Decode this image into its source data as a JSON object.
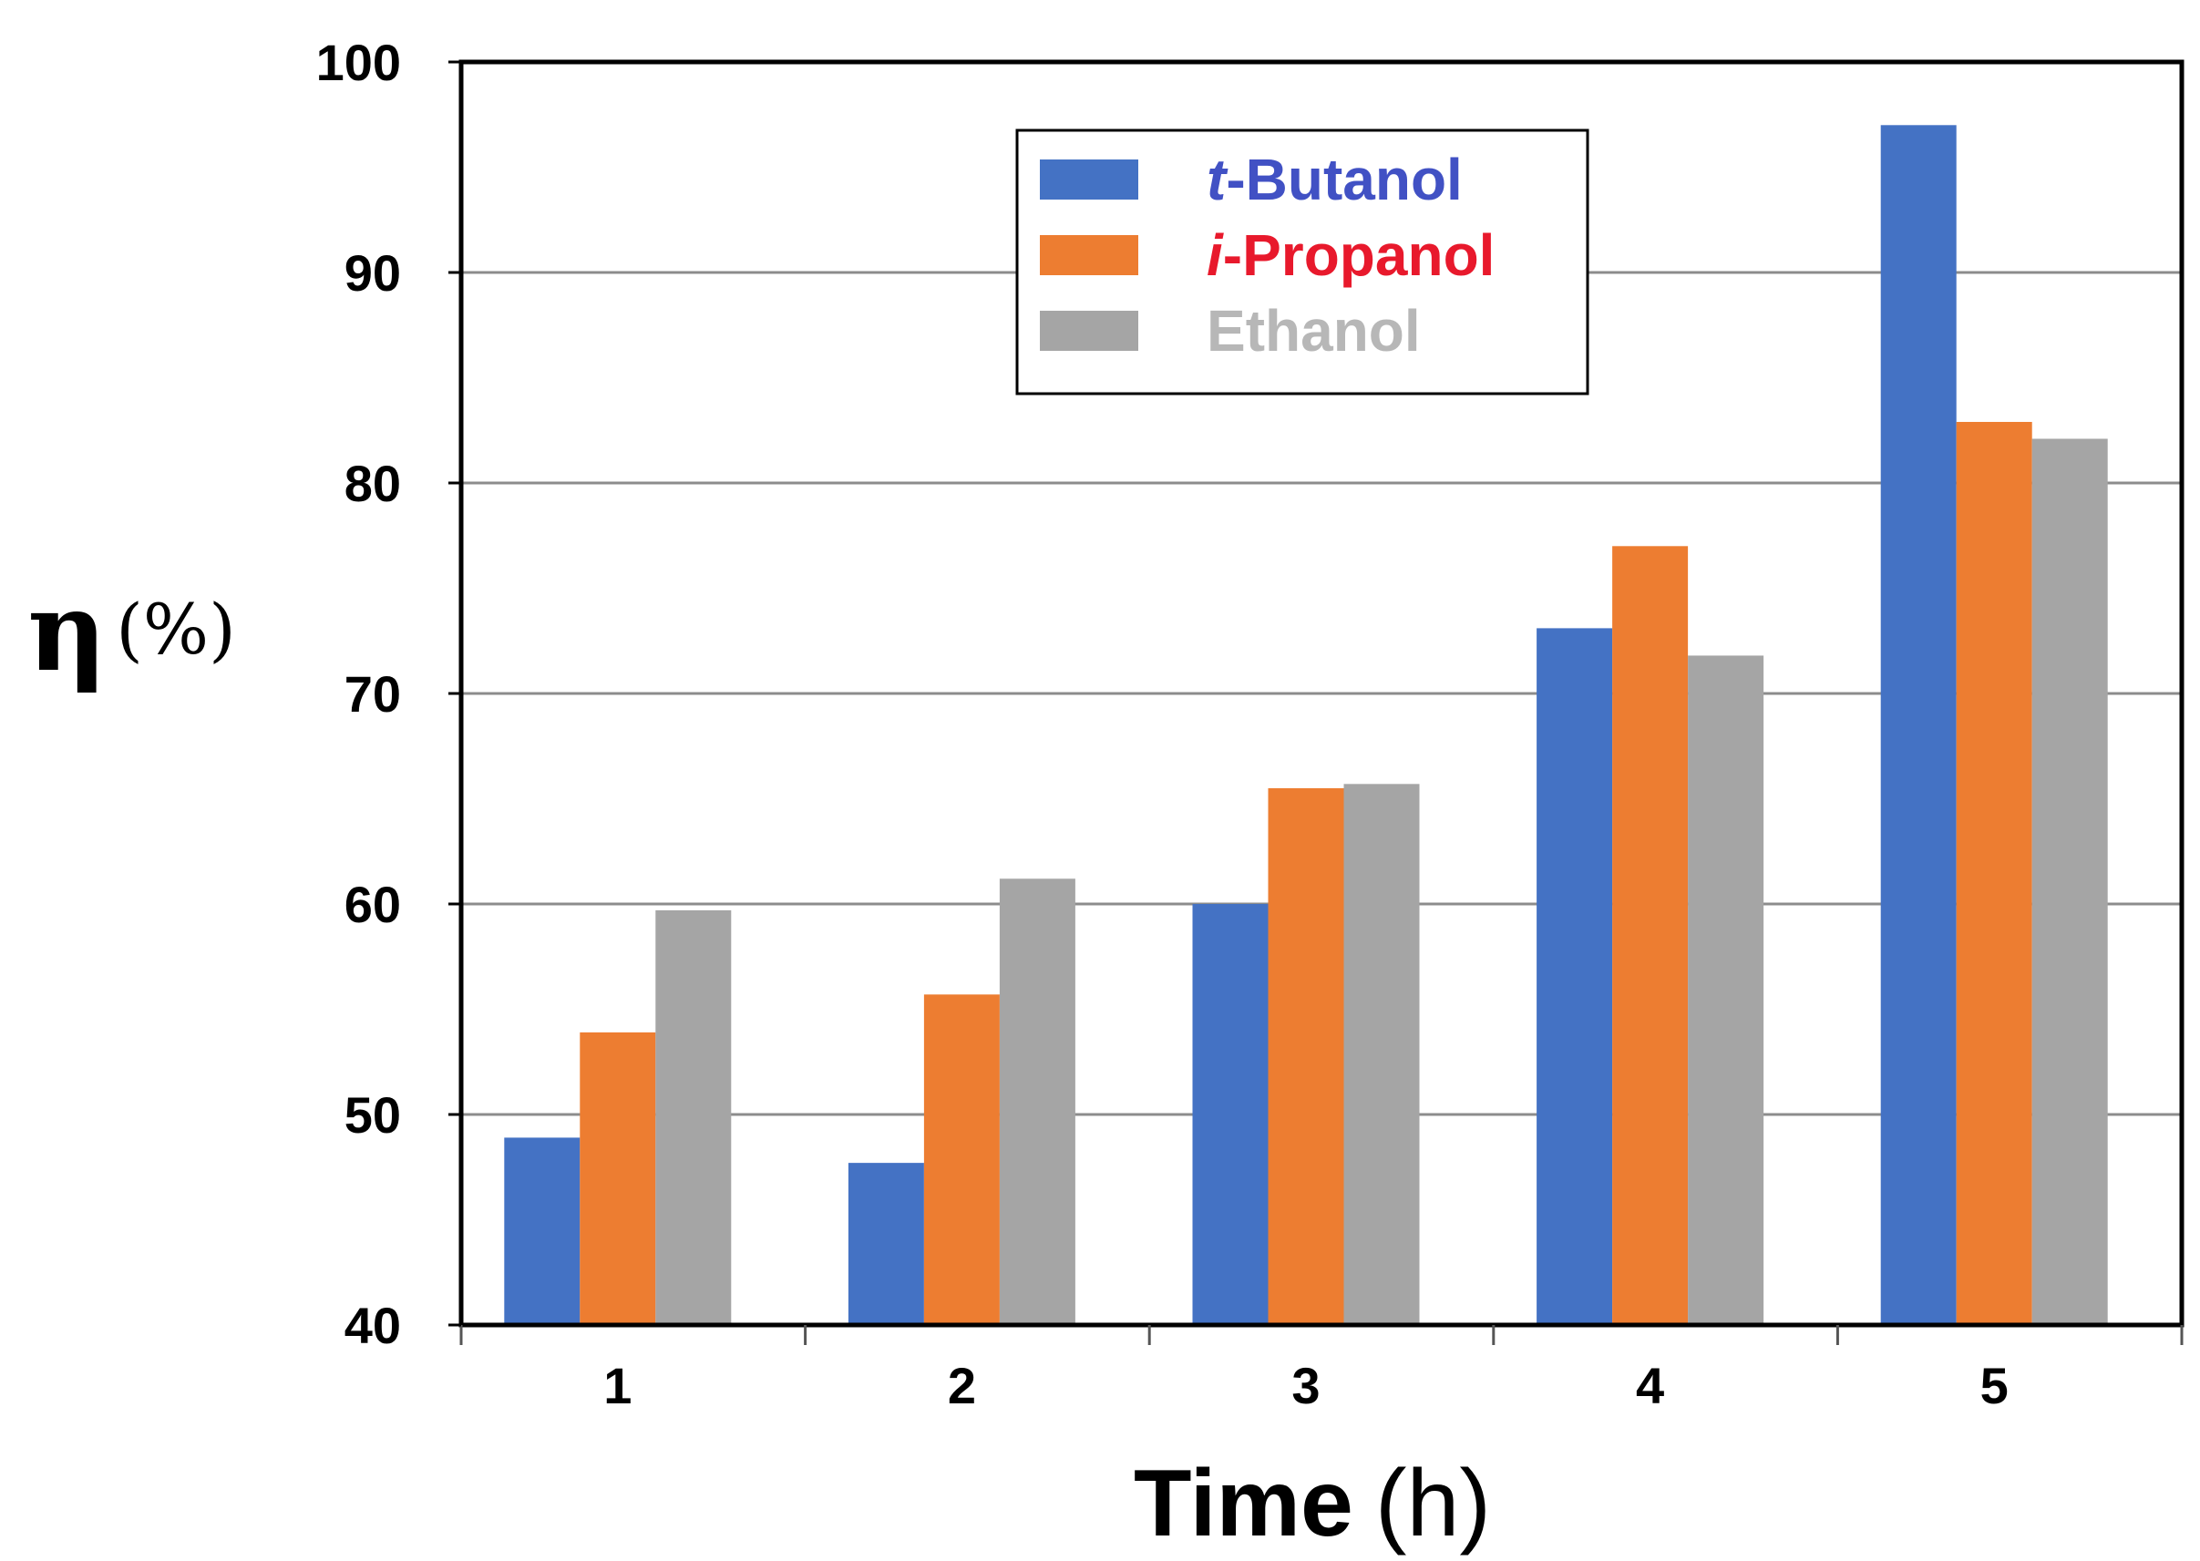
{
  "chart_data": {
    "type": "bar",
    "title": "",
    "xlabel": "Time",
    "xlabel_unit": "(h)",
    "ylabel": "η",
    "ylabel_unit": "(%)",
    "categories": [
      "1",
      "2",
      "3",
      "4",
      "5"
    ],
    "ylim": [
      40,
      100
    ],
    "yticks": [
      "40",
      "50",
      "60",
      "70",
      "80",
      "90",
      "100"
    ],
    "grid": true,
    "legend_position": "top-center",
    "series": [
      {
        "name": "t-Butanol",
        "prefix": "t",
        "suffix": "-Butanol",
        "color": "#4472C4",
        "label_color": "#4151C4",
        "values": [
          48.9,
          47.7,
          60.0,
          73.1,
          97.0
        ]
      },
      {
        "name": "i-Propanol",
        "prefix": "i",
        "suffix": "-Propanol",
        "color": "#ED7D31",
        "label_color": "#E8192C",
        "values": [
          53.9,
          55.7,
          65.5,
          77.0,
          82.9
        ]
      },
      {
        "name": "Ethanol",
        "prefix": "",
        "suffix": "Ethanol",
        "color": "#A5A5A5",
        "label_color": "#B7B7B7",
        "values": [
          59.7,
          61.2,
          65.7,
          71.8,
          82.1
        ]
      }
    ]
  }
}
